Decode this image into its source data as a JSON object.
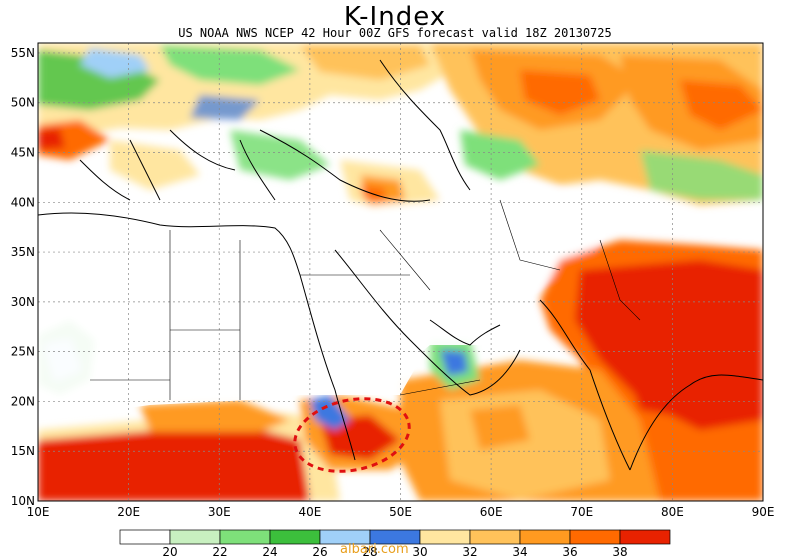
{
  "title": "K-Index",
  "subtitle": "US NOAA NWS NCEP 42 Hour 00Z GFS forecast valid 18Z 20130725",
  "watermark": "albari.com",
  "chart_data": {
    "type": "heatmap",
    "variable": "K-Index",
    "lon_range": [
      10,
      90
    ],
    "lat_range": [
      10,
      56
    ],
    "x_ticks": [
      "10E",
      "20E",
      "30E",
      "40E",
      "50E",
      "60E",
      "70E",
      "80E",
      "90E"
    ],
    "y_ticks": [
      "55N",
      "50N",
      "45N",
      "40N",
      "35N",
      "30N",
      "25N",
      "20N",
      "15N",
      "10N"
    ],
    "grid": "dotted",
    "colorbar": {
      "levels": [
        "20",
        "22",
        "24",
        "26",
        "28",
        "30",
        "32",
        "34",
        "36",
        "38"
      ],
      "colors": [
        "#ffffff",
        "#c8f0c0",
        "#7ee07a",
        "#3cbf3c",
        "#a0d0f8",
        "#3c78e0",
        "#ffe6a0",
        "#ffc25a",
        "#ff9a20",
        "#ff6a00",
        "#e82200"
      ]
    },
    "annotation": "red dashed ellipse over Red Sea / Yemen"
  }
}
